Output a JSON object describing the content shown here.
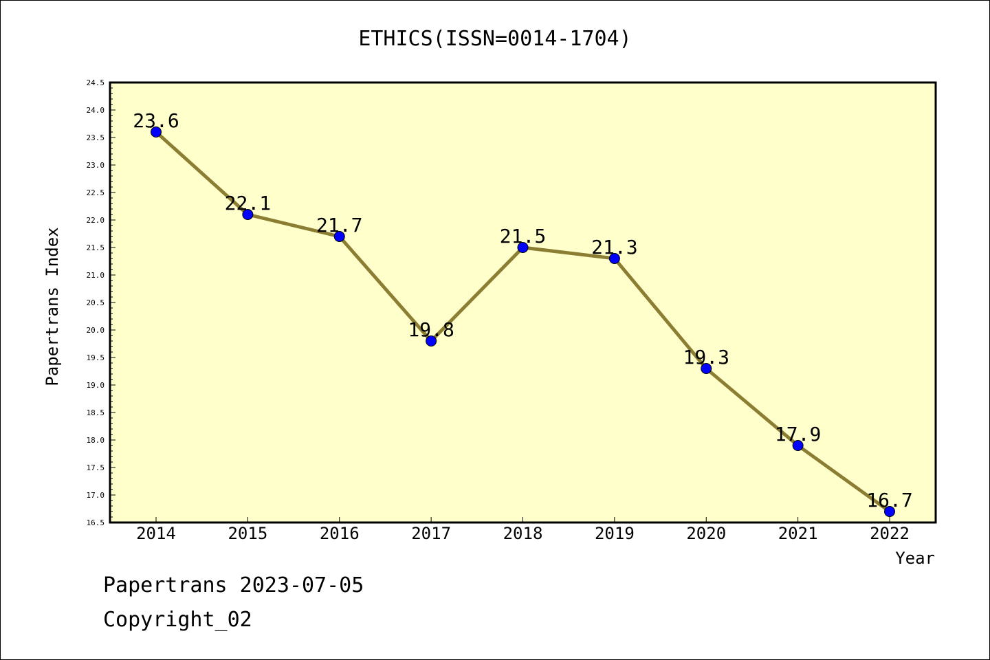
{
  "chart_data": {
    "type": "line",
    "title": "ETHICS(ISSN=0014-1704)",
    "xlabel": "Year",
    "ylabel": "Papertrans Index",
    "categories": [
      "2014",
      "2015",
      "2016",
      "2017",
      "2018",
      "2019",
      "2020",
      "2021",
      "2022"
    ],
    "series": [
      {
        "values": [
          23.6,
          22.1,
          21.7,
          19.8,
          21.5,
          21.3,
          19.3,
          17.9,
          16.7
        ]
      }
    ],
    "data_labels": [
      "23.6",
      "22.1",
      "21.7",
      "19.8",
      "21.5",
      "21.3",
      "19.3",
      "17.9",
      "16.7"
    ],
    "ylim": [
      16.5,
      24.5
    ],
    "yticks": [
      "16.5",
      "17.0",
      "17.5",
      "18.0",
      "18.5",
      "19.0",
      "19.5",
      "20.0",
      "20.5",
      "21.0",
      "21.5",
      "22.0",
      "22.5",
      "23.0",
      "23.5",
      "24.0",
      "24.5"
    ],
    "grid": false,
    "legend": "none",
    "colors": {
      "plot_background": "#ffffcc",
      "line": "#8b7d32",
      "marker": "#0000ff",
      "axis": "#000000"
    }
  },
  "footer": {
    "line1": "Papertrans 2023-07-05",
    "line2": "Copyright_02"
  }
}
